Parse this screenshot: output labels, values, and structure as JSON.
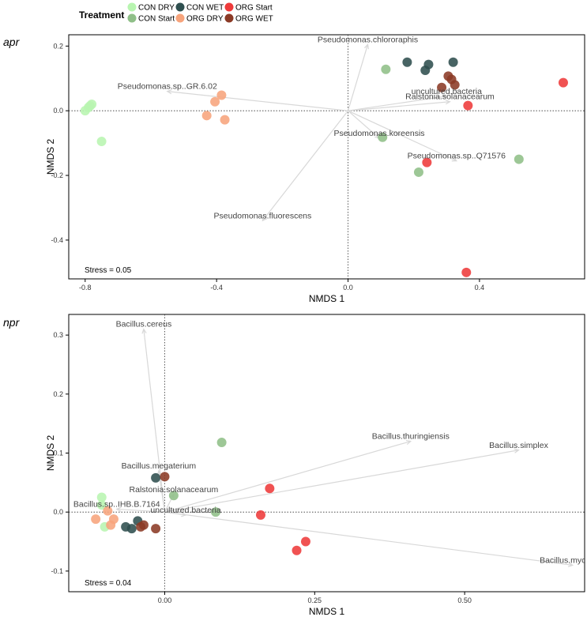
{
  "legend": {
    "title": "Treatment",
    "entries": [
      {
        "label": "CON DRY",
        "color": "#b8f5b0"
      },
      {
        "label": "CON Start",
        "color": "#8fbf88"
      },
      {
        "label": "CON WET",
        "color": "#2f4f4f"
      },
      {
        "label": "ORG DRY",
        "color": "#f7a47c"
      },
      {
        "label": "ORG Start",
        "color": "#ee3a3a"
      },
      {
        "label": "ORG WET",
        "color": "#8b3a26"
      }
    ]
  },
  "chart_data": [
    {
      "type": "scatter",
      "panel_label": "apr",
      "xlabel": "NMDS 1",
      "ylabel": "NMDS 2",
      "xlim": [
        -0.85,
        0.72
      ],
      "ylim": [
        -0.52,
        0.235
      ],
      "xticks": [
        -0.8,
        -0.4,
        0.0,
        0.4
      ],
      "xtick_labels": [
        "-0.8",
        "-0.4",
        "0.0",
        "0.4"
      ],
      "yticks": [
        0.2,
        0.0,
        -0.2,
        -0.4
      ],
      "ytick_labels": [
        "0.2",
        "0.0",
        "-0.2",
        "-0.4"
      ],
      "stress": "Stress = 0.05",
      "points": [
        {
          "group": "CON DRY",
          "x": -0.8,
          "y": 0.0
        },
        {
          "group": "CON DRY",
          "x": -0.79,
          "y": 0.01
        },
        {
          "group": "CON DRY",
          "x": -0.785,
          "y": 0.015
        },
        {
          "group": "CON DRY",
          "x": -0.78,
          "y": 0.02
        },
        {
          "group": "CON DRY",
          "x": -0.75,
          "y": -0.095
        },
        {
          "group": "ORG DRY",
          "x": -0.43,
          "y": -0.015
        },
        {
          "group": "ORG DRY",
          "x": -0.405,
          "y": 0.028
        },
        {
          "group": "ORG DRY",
          "x": -0.385,
          "y": 0.048
        },
        {
          "group": "ORG DRY",
          "x": -0.375,
          "y": -0.028
        },
        {
          "group": "CON Start",
          "x": 0.115,
          "y": 0.128
        },
        {
          "group": "CON Start",
          "x": 0.105,
          "y": -0.082
        },
        {
          "group": "CON Start",
          "x": 0.215,
          "y": -0.19
        },
        {
          "group": "CON Start",
          "x": 0.52,
          "y": -0.15
        },
        {
          "group": "CON WET",
          "x": 0.18,
          "y": 0.15
        },
        {
          "group": "CON WET",
          "x": 0.235,
          "y": 0.125
        },
        {
          "group": "CON WET",
          "x": 0.245,
          "y": 0.143
        },
        {
          "group": "CON WET",
          "x": 0.32,
          "y": 0.15
        },
        {
          "group": "ORG WET",
          "x": 0.285,
          "y": 0.072
        },
        {
          "group": "ORG WET",
          "x": 0.305,
          "y": 0.107
        },
        {
          "group": "ORG WET",
          "x": 0.315,
          "y": 0.097
        },
        {
          "group": "ORG WET",
          "x": 0.325,
          "y": 0.08
        },
        {
          "group": "ORG Start",
          "x": 0.365,
          "y": 0.016
        },
        {
          "group": "ORG Start",
          "x": 0.24,
          "y": -0.16
        },
        {
          "group": "ORG Start",
          "x": 0.655,
          "y": 0.087
        },
        {
          "group": "ORG Start",
          "x": 0.36,
          "y": -0.5
        }
      ],
      "vectors": [
        {
          "label": "Pseudomonas.chlororaphis",
          "x": 0.06,
          "y": 0.205
        },
        {
          "label": "Pseudomonas.sp..GR.6.02",
          "x": -0.55,
          "y": 0.06
        },
        {
          "label": "uncultured.bacteria",
          "x": 0.3,
          "y": 0.045
        },
        {
          "label": "Ralstonia.solanacearum",
          "x": 0.31,
          "y": 0.028
        },
        {
          "label": "Pseudomonas.koreensis",
          "x": 0.095,
          "y": -0.085
        },
        {
          "label": "Pseudomonas.sp..Q71576",
          "x": 0.33,
          "y": -0.155
        },
        {
          "label": "Pseudomonas.fluorescens",
          "x": -0.26,
          "y": -0.34
        }
      ]
    },
    {
      "type": "scatter",
      "panel_label": "npr",
      "xlabel": "NMDS 1",
      "ylabel": "NMDS 2",
      "xlim": [
        -0.16,
        0.7
      ],
      "ylim": [
        -0.135,
        0.335
      ],
      "xticks": [
        0.0,
        0.25,
        0.5
      ],
      "xtick_labels": [
        "0.00",
        "0.25",
        "0.50"
      ],
      "yticks": [
        0.3,
        0.2,
        0.1,
        0.0,
        -0.1
      ],
      "ytick_labels": [
        "0.3",
        "0.2",
        "0.1",
        "0.0",
        "-0.1"
      ],
      "stress": "Stress = 0.04",
      "points": [
        {
          "group": "CON DRY",
          "x": -0.105,
          "y": 0.025
        },
        {
          "group": "CON DRY",
          "x": -0.105,
          "y": 0.012
        },
        {
          "group": "CON DRY",
          "x": -0.1,
          "y": -0.025
        },
        {
          "group": "ORG DRY",
          "x": -0.115,
          "y": -0.012
        },
        {
          "group": "ORG DRY",
          "x": -0.095,
          "y": 0.002
        },
        {
          "group": "ORG DRY",
          "x": -0.09,
          "y": -0.022
        },
        {
          "group": "ORG DRY",
          "x": -0.085,
          "y": -0.012
        },
        {
          "group": "CON WET",
          "x": -0.065,
          "y": -0.025
        },
        {
          "group": "CON WET",
          "x": -0.055,
          "y": -0.028
        },
        {
          "group": "CON WET",
          "x": -0.045,
          "y": -0.015
        },
        {
          "group": "CON WET",
          "x": -0.015,
          "y": 0.058
        },
        {
          "group": "ORG WET",
          "x": -0.04,
          "y": -0.025
        },
        {
          "group": "ORG WET",
          "x": -0.035,
          "y": -0.022
        },
        {
          "group": "ORG WET",
          "x": -0.015,
          "y": -0.028
        },
        {
          "group": "ORG WET",
          "x": 0.0,
          "y": 0.06
        },
        {
          "group": "CON Start",
          "x": 0.015,
          "y": 0.028
        },
        {
          "group": "CON Start",
          "x": 0.085,
          "y": 0.0
        },
        {
          "group": "CON Start",
          "x": 0.095,
          "y": 0.118
        },
        {
          "group": "ORG Start",
          "x": 0.175,
          "y": 0.04
        },
        {
          "group": "ORG Start",
          "x": 0.16,
          "y": -0.005
        },
        {
          "group": "ORG Start",
          "x": 0.235,
          "y": -0.05
        },
        {
          "group": "ORG Start",
          "x": 0.22,
          "y": -0.065
        }
      ],
      "vectors": [
        {
          "label": "Bacillus.cereus",
          "x": -0.035,
          "y": 0.31
        },
        {
          "label": "Bacillus.thuringiensis",
          "x": 0.41,
          "y": 0.12
        },
        {
          "label": "Bacillus.simplex",
          "x": 0.59,
          "y": 0.105
        },
        {
          "label": "Bacillus.megaterium",
          "x": -0.01,
          "y": 0.07
        },
        {
          "label": "Ralstonia.solanacearum",
          "x": 0.015,
          "y": 0.03
        },
        {
          "label": "Bacillus.sp..IHB.B.7164",
          "x": -0.08,
          "y": 0.005
        },
        {
          "label": "uncultured.bacteria",
          "x": 0.035,
          "y": -0.005
        },
        {
          "label": "Bacillus.mycoides",
          "x": 0.68,
          "y": -0.09
        }
      ]
    }
  ]
}
